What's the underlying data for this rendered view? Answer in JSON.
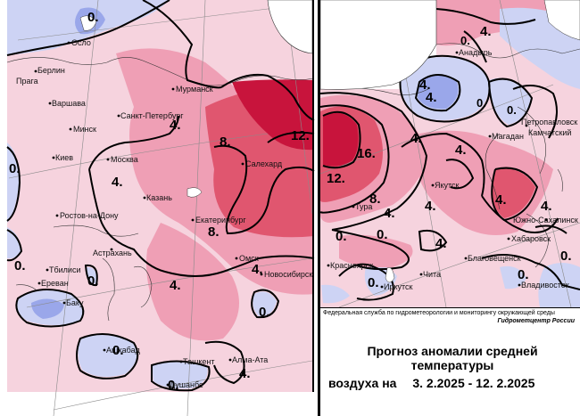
{
  "colors": {
    "background": "#ffffff",
    "positive_weak": "#f6d3de",
    "positive_mid": "#ef9fb5",
    "positive_strong": "#e0566f",
    "positive_max": "#c8143c",
    "negative_weak": "#cdd3f4",
    "negative_mid": "#9aa7ea",
    "negative_strong": "#5f6fd6"
  },
  "left_map": {
    "cities": [
      "Осло",
      "Берлин",
      "Прага",
      "Варшава",
      "Мурманск",
      "Санкт-Петербург",
      "Минск",
      "Киев",
      "Москва",
      "Казань",
      "Салехард",
      "Ростов-на-Дону",
      "Екатеринбург",
      "Астрахань",
      "Омск",
      "Тбилиси",
      "Новосибирск",
      "Ереван",
      "Баку",
      "Ашхабад",
      "Ташкент",
      "Алма-Ата",
      "Душанбе"
    ],
    "contour_labels": [
      "0.",
      "0.",
      "0.",
      "4.",
      "4.",
      "4.",
      "8.",
      "8.",
      "12.",
      "0.",
      "4.",
      "0.",
      "0.",
      "0.",
      "4."
    ]
  },
  "right_map": {
    "cities": [
      "Анадырь",
      "Петропавловск",
      "Камчатский",
      "Магадан",
      "Якутск",
      "Тура",
      "Южно-Сахалинск",
      "Хабаровск",
      "Благовещенск",
      "Красноярск",
      "Иркутск",
      "Чита",
      "Владивосток"
    ],
    "contour_labels": [
      "4.",
      "0.",
      "4.",
      "4.",
      "0.",
      "0.",
      "16.",
      "12.",
      "8.",
      "4.",
      "4.",
      "4.",
      "0.",
      "4.",
      "4.",
      "4.",
      "0.",
      "4.",
      "0.",
      "0.",
      "0."
    ]
  },
  "credits": {
    "agency": "Федеральная служба по гидрометеорологии и мониторингу окружающей среды",
    "center": "Гидрометцентр России"
  },
  "title": {
    "line1": "Прогноз аномалии средней температуры",
    "line2": "воздуха на",
    "period": "3. 2.2025 - 12. 2.2025"
  }
}
